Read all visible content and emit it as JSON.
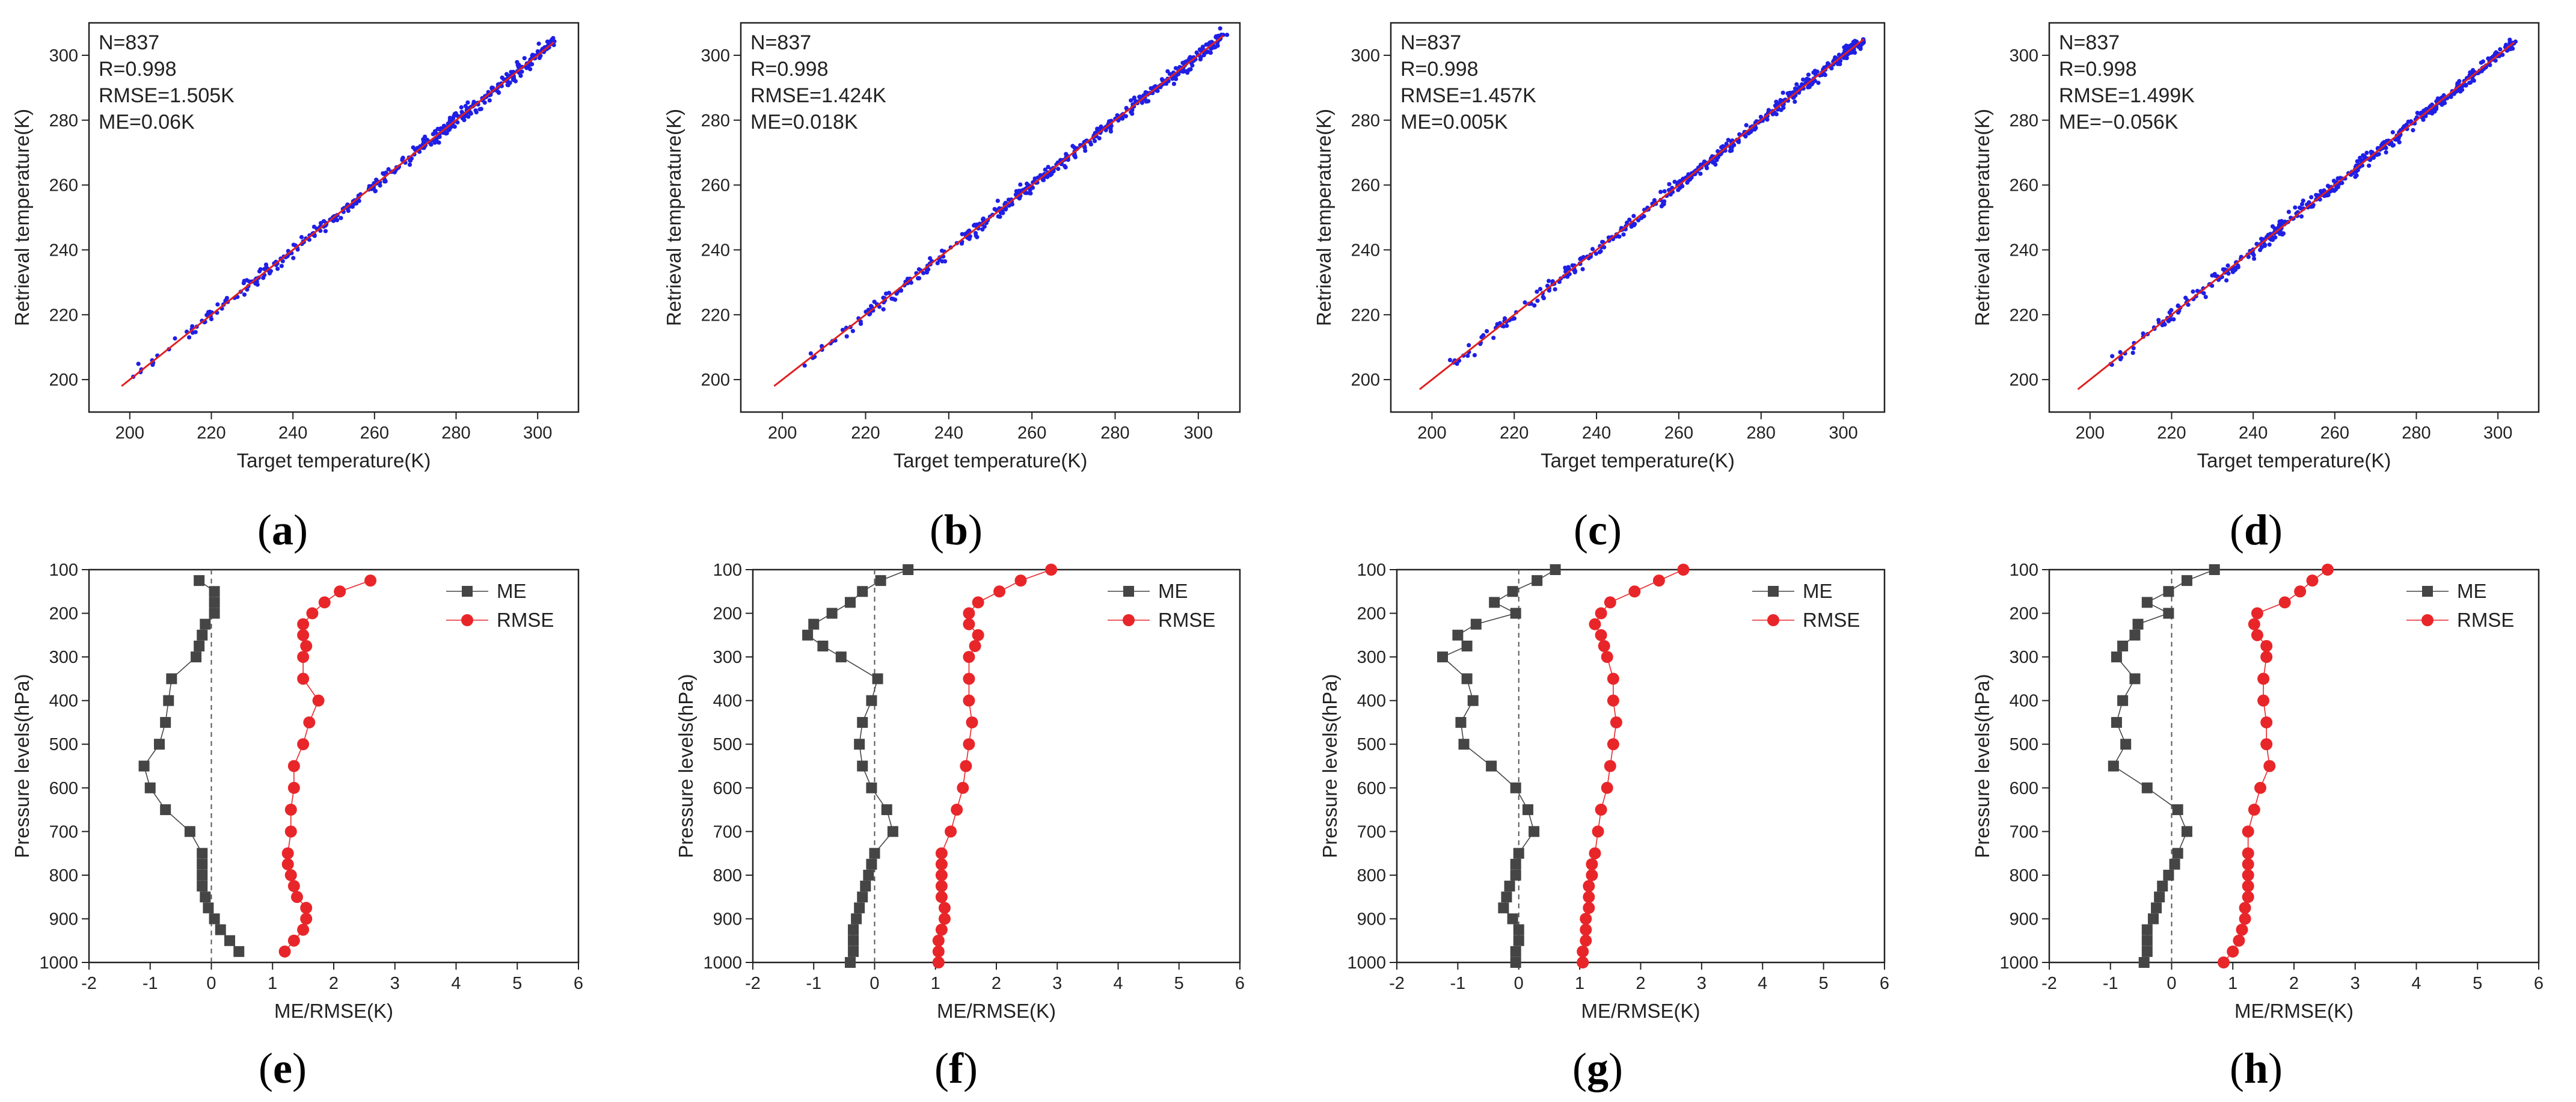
{
  "chart_data": [
    {
      "panel": "a",
      "type": "scatter",
      "xlabel": "Target temperature(K)",
      "ylabel": "Retrieval temperature(K)",
      "xlim": [
        190,
        310
      ],
      "ylim": [
        190,
        310
      ],
      "xticks": [
        200,
        220,
        240,
        260,
        280,
        300
      ],
      "yticks": [
        200,
        220,
        240,
        260,
        280,
        300
      ],
      "fit_line": {
        "from": [
          198,
          198
        ],
        "to": [
          304,
          304
        ],
        "color": "#e02020"
      },
      "point_color": "#1f1fe6",
      "point_range": [
        198,
        304
      ],
      "stats": [
        "N=837",
        "R=0.998",
        "RMSE=1.505K",
        "ME=0.06K"
      ]
    },
    {
      "panel": "b",
      "type": "scatter",
      "xlabel": "Target temperature(K)",
      "ylabel": "Retrieval temperature(K)",
      "xlim": [
        190,
        310
      ],
      "ylim": [
        190,
        310
      ],
      "xticks": [
        200,
        220,
        240,
        260,
        280,
        300
      ],
      "yticks": [
        200,
        220,
        240,
        260,
        280,
        300
      ],
      "fit_line": {
        "from": [
          198,
          198
        ],
        "to": [
          306,
          306
        ],
        "color": "#e02020"
      },
      "point_color": "#1f1fe6",
      "point_range": [
        198,
        306
      ],
      "stats": [
        "N=837",
        "R=0.998",
        "RMSE=1.424K",
        "ME=0.018K"
      ]
    },
    {
      "panel": "c",
      "type": "scatter",
      "xlabel": "Target temperature(K)",
      "ylabel": "Retrieval temperature(K)",
      "xlim": [
        190,
        310
      ],
      "ylim": [
        190,
        310
      ],
      "xticks": [
        200,
        220,
        240,
        260,
        280,
        300
      ],
      "yticks": [
        200,
        220,
        240,
        260,
        280,
        300
      ],
      "fit_line": {
        "from": [
          197,
          197
        ],
        "to": [
          305,
          305
        ],
        "color": "#e02020"
      },
      "point_color": "#1f1fe6",
      "point_range": [
        197,
        305
      ],
      "stats": [
        "N=837",
        "R=0.998",
        "RMSE=1.457K",
        "ME=0.005K"
      ]
    },
    {
      "panel": "d",
      "type": "scatter",
      "xlabel": "Target temperature(K)",
      "ylabel": "Retrieval temperature(K)",
      "xlim": [
        190,
        310
      ],
      "ylim": [
        190,
        310
      ],
      "xticks": [
        200,
        220,
        240,
        260,
        280,
        300
      ],
      "yticks": [
        200,
        220,
        240,
        260,
        280,
        300
      ],
      "fit_line": {
        "from": [
          197,
          197
        ],
        "to": [
          304,
          304
        ],
        "color": "#e02020"
      },
      "point_color": "#1f1fe6",
      "point_range": [
        197,
        304
      ],
      "stats": [
        "N=837",
        "R=0.998",
        "RMSE=1.499K",
        "ME=−0.056K"
      ]
    },
    {
      "panel": "e",
      "type": "line",
      "xlabel": "ME/RMSE(K)",
      "ylabel": "Pressure levels(hPa)",
      "xlim": [
        -2,
        6
      ],
      "ylim": [
        100,
        1000
      ],
      "xticks": [
        -2,
        -1,
        0,
        1,
        2,
        3,
        4,
        5,
        6
      ],
      "yticks": [
        100,
        200,
        300,
        400,
        500,
        600,
        700,
        800,
        900,
        1000
      ],
      "y_inverted": true,
      "zero_line": 0,
      "legend": [
        "ME",
        "RMSE"
      ],
      "y": [
        125,
        150,
        175,
        200,
        225,
        250,
        275,
        300,
        350,
        400,
        450,
        500,
        550,
        600,
        650,
        700,
        750,
        775,
        800,
        825,
        850,
        875,
        900,
        925,
        950,
        975
      ],
      "series": [
        {
          "name": "ME",
          "color": "#454545",
          "values": [
            -0.2,
            0.05,
            0.05,
            0.05,
            -0.1,
            -0.15,
            -0.2,
            -0.25,
            -0.65,
            -0.7,
            -0.75,
            -0.85,
            -1.1,
            -1.0,
            -0.75,
            -0.35,
            -0.15,
            -0.15,
            -0.15,
            -0.15,
            -0.1,
            -0.05,
            0.05,
            0.15,
            0.3,
            0.45
          ]
        },
        {
          "name": "RMSE",
          "color": "#e8262a",
          "values": [
            2.6,
            2.1,
            1.85,
            1.65,
            1.5,
            1.5,
            1.55,
            1.5,
            1.5,
            1.75,
            1.6,
            1.5,
            1.35,
            1.35,
            1.3,
            1.3,
            1.25,
            1.25,
            1.3,
            1.35,
            1.4,
            1.55,
            1.55,
            1.5,
            1.35,
            1.2
          ]
        }
      ]
    },
    {
      "panel": "f",
      "type": "line",
      "xlabel": "ME/RMSE(K)",
      "ylabel": "Pressure levels(hPa)",
      "xlim": [
        -2,
        6
      ],
      "ylim": [
        100,
        1000
      ],
      "xticks": [
        -2,
        -1,
        0,
        1,
        2,
        3,
        4,
        5,
        6
      ],
      "yticks": [
        100,
        200,
        300,
        400,
        500,
        600,
        700,
        800,
        900,
        1000
      ],
      "y_inverted": true,
      "zero_line": 0,
      "legend": [
        "ME",
        "RMSE"
      ],
      "y": [
        100,
        125,
        150,
        175,
        200,
        225,
        250,
        275,
        300,
        350,
        400,
        450,
        500,
        550,
        600,
        650,
        700,
        750,
        775,
        800,
        825,
        850,
        875,
        900,
        925,
        950,
        975,
        1000
      ],
      "series": [
        {
          "name": "ME",
          "color": "#454545",
          "values": [
            0.55,
            0.1,
            -0.2,
            -0.4,
            -0.7,
            -1.0,
            -1.1,
            -0.85,
            -0.55,
            0.05,
            -0.05,
            -0.2,
            -0.25,
            -0.2,
            -0.05,
            0.2,
            0.3,
            0.0,
            -0.05,
            -0.1,
            -0.15,
            -0.2,
            -0.25,
            -0.3,
            -0.35,
            -0.35,
            -0.35,
            -0.4
          ]
        },
        {
          "name": "RMSE",
          "color": "#e8262a",
          "values": [
            2.9,
            2.4,
            2.05,
            1.7,
            1.55,
            1.55,
            1.7,
            1.65,
            1.55,
            1.55,
            1.55,
            1.6,
            1.55,
            1.5,
            1.45,
            1.35,
            1.25,
            1.1,
            1.1,
            1.1,
            1.1,
            1.1,
            1.15,
            1.15,
            1.1,
            1.05,
            1.05,
            1.05
          ]
        }
      ]
    },
    {
      "panel": "g",
      "type": "line",
      "xlabel": "ME/RMSE(K)",
      "ylabel": "Pressure levels(hPa)",
      "xlim": [
        -2,
        6
      ],
      "ylim": [
        100,
        1000
      ],
      "xticks": [
        -2,
        -1,
        0,
        1,
        2,
        3,
        4,
        5,
        6
      ],
      "yticks": [
        100,
        200,
        300,
        400,
        500,
        600,
        700,
        800,
        900,
        1000
      ],
      "y_inverted": true,
      "zero_line": 0,
      "legend": [
        "ME",
        "RMSE"
      ],
      "y": [
        100,
        125,
        150,
        175,
        200,
        225,
        250,
        275,
        300,
        350,
        400,
        450,
        500,
        550,
        600,
        650,
        700,
        750,
        775,
        800,
        825,
        850,
        875,
        900,
        925,
        950,
        975,
        1000
      ],
      "series": [
        {
          "name": "ME",
          "color": "#454545",
          "values": [
            0.6,
            0.3,
            -0.1,
            -0.4,
            -0.05,
            -0.7,
            -1.0,
            -0.85,
            -1.25,
            -0.85,
            -0.75,
            -0.95,
            -0.9,
            -0.45,
            -0.05,
            0.15,
            0.25,
            0.0,
            -0.05,
            -0.05,
            -0.15,
            -0.2,
            -0.25,
            -0.1,
            0.0,
            0.0,
            -0.05,
            -0.05
          ]
        },
        {
          "name": "RMSE",
          "color": "#e8262a",
          "values": [
            2.7,
            2.3,
            1.9,
            1.5,
            1.35,
            1.25,
            1.35,
            1.4,
            1.45,
            1.55,
            1.55,
            1.6,
            1.55,
            1.5,
            1.45,
            1.35,
            1.3,
            1.25,
            1.2,
            1.2,
            1.15,
            1.15,
            1.15,
            1.1,
            1.1,
            1.1,
            1.05,
            1.05
          ]
        }
      ]
    },
    {
      "panel": "h",
      "type": "line",
      "xlabel": "ME/RMSE(K)",
      "ylabel": "Pressure levels(hPa)",
      "xlim": [
        -2,
        6
      ],
      "ylim": [
        100,
        1000
      ],
      "xticks": [
        -2,
        -1,
        0,
        1,
        2,
        3,
        4,
        5,
        6
      ],
      "yticks": [
        100,
        200,
        300,
        400,
        500,
        600,
        700,
        800,
        900,
        1000
      ],
      "y_inverted": true,
      "zero_line": 0,
      "legend": [
        "ME",
        "RMSE"
      ],
      "y": [
        100,
        125,
        150,
        175,
        200,
        225,
        250,
        275,
        300,
        350,
        400,
        450,
        500,
        550,
        600,
        650,
        700,
        750,
        775,
        800,
        825,
        850,
        875,
        900,
        925,
        950,
        975,
        1000
      ],
      "series": [
        {
          "name": "ME",
          "color": "#454545",
          "values": [
            0.7,
            0.25,
            -0.05,
            -0.4,
            -0.05,
            -0.55,
            -0.6,
            -0.8,
            -0.9,
            -0.6,
            -0.8,
            -0.9,
            -0.75,
            -0.95,
            -0.4,
            0.1,
            0.25,
            0.1,
            0.05,
            -0.05,
            -0.15,
            -0.2,
            -0.25,
            -0.3,
            -0.4,
            -0.4,
            -0.4,
            -0.45
          ]
        },
        {
          "name": "RMSE",
          "color": "#e8262a",
          "values": [
            2.55,
            2.3,
            2.1,
            1.85,
            1.4,
            1.35,
            1.4,
            1.55,
            1.55,
            1.5,
            1.5,
            1.55,
            1.55,
            1.6,
            1.45,
            1.35,
            1.25,
            1.25,
            1.25,
            1.25,
            1.25,
            1.25,
            1.2,
            1.2,
            1.15,
            1.1,
            1.0,
            0.85
          ]
        }
      ]
    }
  ],
  "panel_labels": [
    "a",
    "b",
    "c",
    "d",
    "e",
    "f",
    "g",
    "h"
  ]
}
